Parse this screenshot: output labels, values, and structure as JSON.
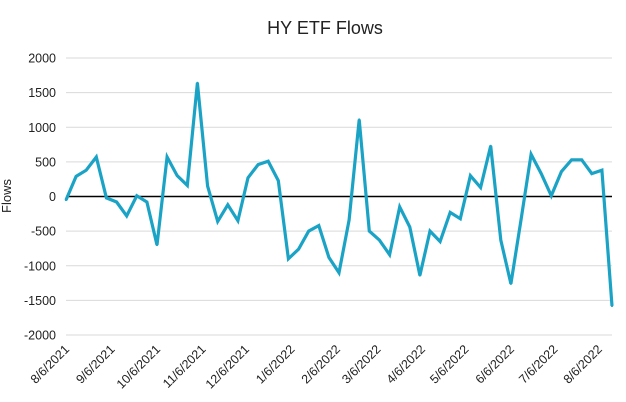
{
  "chart_data": {
    "type": "line",
    "title": "HY ETF Flows",
    "ylabel": "Flows",
    "xlabel": "",
    "ylim": [
      -2000,
      2000
    ],
    "yticks": [
      -2000,
      -1500,
      -1000,
      -500,
      0,
      500,
      1000,
      1500,
      2000
    ],
    "xticks": [
      {
        "label": "8/6/2021",
        "index": 0
      },
      {
        "label": "9/6/2021",
        "index": 4.5
      },
      {
        "label": "10/6/2021",
        "index": 9
      },
      {
        "label": "11/6/2021",
        "index": 13.5
      },
      {
        "label": "12/6/2021",
        "index": 17.8
      },
      {
        "label": "1/6/2022",
        "index": 22.3
      },
      {
        "label": "2/6/2022",
        "index": 26.8
      },
      {
        "label": "3/6/2022",
        "index": 30.8
      },
      {
        "label": "4/6/2022",
        "index": 35.2
      },
      {
        "label": "5/6/2022",
        "index": 39.5
      },
      {
        "label": "6/6/2022",
        "index": 44
      },
      {
        "label": "7/6/2022",
        "index": 48.3
      },
      {
        "label": "8/6/2022",
        "index": 52.7
      }
    ],
    "grid": true,
    "legend": "none",
    "series": [
      {
        "color": "#1ba3c6",
        "values": [
          -50,
          290,
          380,
          570,
          -20,
          -80,
          -280,
          10,
          -80,
          -700,
          570,
          300,
          160,
          1640,
          150,
          -360,
          -120,
          -350,
          270,
          460,
          510,
          230,
          -900,
          -760,
          -500,
          -420,
          -880,
          -1100,
          -340,
          1110,
          -500,
          -630,
          -840,
          -150,
          -440,
          -1140,
          -500,
          -650,
          -230,
          -320,
          300,
          130,
          730,
          -630,
          -1260,
          -340,
          610,
          330,
          10,
          360,
          530,
          530,
          330,
          380,
          -1580
        ]
      }
    ]
  }
}
